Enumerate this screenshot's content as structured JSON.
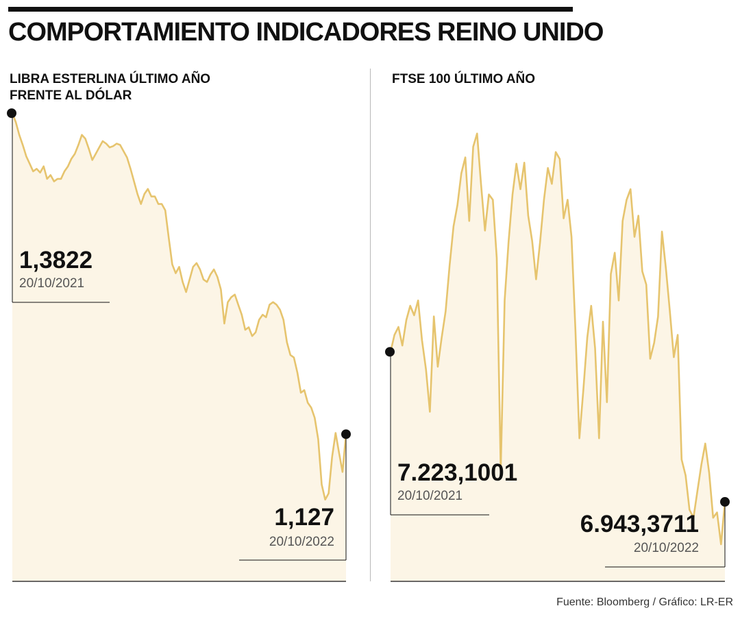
{
  "title": "COMPORTAMIENTO INDICADORES REINO UNIDO",
  "source": "Fuente: Bloomberg / Gráfico: LR-ER",
  "colors": {
    "line": "#e6c46e",
    "fill": "#fcf5e6",
    "marker": "#111111"
  },
  "chart_data": [
    {
      "type": "area",
      "title_line1": "LIBRA ESTERLINA ÚLTIMO AÑO",
      "title_line2": "FRENTE AL DÓLAR",
      "x_range": [
        "20/10/2021",
        "20/10/2022"
      ],
      "ylim": [
        1.01,
        1.385
      ],
      "start": {
        "value": 1.3822,
        "label": "1,3822",
        "date": "20/10/2021"
      },
      "end": {
        "value": 1.127,
        "label": "1,127",
        "date": "20/10/2022"
      },
      "values": [
        1.3822,
        1.375,
        1.365,
        1.357,
        1.348,
        1.342,
        1.336,
        1.338,
        1.335,
        1.34,
        1.33,
        1.333,
        1.328,
        1.33,
        1.33,
        1.336,
        1.34,
        1.346,
        1.35,
        1.357,
        1.365,
        1.362,
        1.354,
        1.345,
        1.35,
        1.355,
        1.36,
        1.358,
        1.355,
        1.356,
        1.358,
        1.357,
        1.352,
        1.347,
        1.338,
        1.328,
        1.318,
        1.31,
        1.318,
        1.322,
        1.316,
        1.316,
        1.31,
        1.31,
        1.305,
        1.283,
        1.262,
        1.255,
        1.26,
        1.248,
        1.24,
        1.25,
        1.26,
        1.263,
        1.258,
        1.25,
        1.248,
        1.254,
        1.258,
        1.252,
        1.242,
        1.215,
        1.232,
        1.236,
        1.238,
        1.23,
        1.222,
        1.21,
        1.212,
        1.205,
        1.208,
        1.218,
        1.222,
        1.22,
        1.23,
        1.232,
        1.23,
        1.226,
        1.218,
        1.2,
        1.19,
        1.188,
        1.176,
        1.16,
        1.162,
        1.152,
        1.148,
        1.14,
        1.123,
        1.087,
        1.075,
        1.08,
        1.109,
        1.128,
        1.112,
        1.097,
        1.127
      ]
    },
    {
      "type": "area",
      "title_line1": "FTSE 100 ÚLTIMO AÑO",
      "x_range": [
        "20/10/2021",
        "20/10/2022"
      ],
      "ylim": [
        6790,
        7680
      ],
      "start": {
        "value": 7223.1001,
        "label": "7.223,1001",
        "date": "20/10/2021"
      },
      "end": {
        "value": 6943.3711,
        "label": "6.943,3711",
        "date": "20/10/2022"
      },
      "values": [
        7223.1001,
        7255,
        7270,
        7235,
        7283,
        7310,
        7292,
        7320,
        7245,
        7190,
        7110,
        7290,
        7195,
        7250,
        7300,
        7385,
        7460,
        7500,
        7560,
        7590,
        7470,
        7610,
        7635,
        7540,
        7452,
        7520,
        7510,
        7400,
        7000,
        7320,
        7430,
        7520,
        7578,
        7530,
        7580,
        7480,
        7432,
        7360,
        7430,
        7510,
        7570,
        7540,
        7600,
        7587,
        7475,
        7510,
        7440,
        7265,
        7060,
        7150,
        7250,
        7310,
        7230,
        7060,
        7280,
        7128,
        7370,
        7410,
        7320,
        7470,
        7510,
        7530,
        7440,
        7480,
        7375,
        7350,
        7210,
        7240,
        7290,
        7450,
        7380,
        7300,
        7213,
        7255,
        7020,
        6990,
        6925,
        6910,
        6960,
        7010,
        7050,
        6995,
        6910,
        6920,
        6860,
        6940
      ]
    }
  ]
}
